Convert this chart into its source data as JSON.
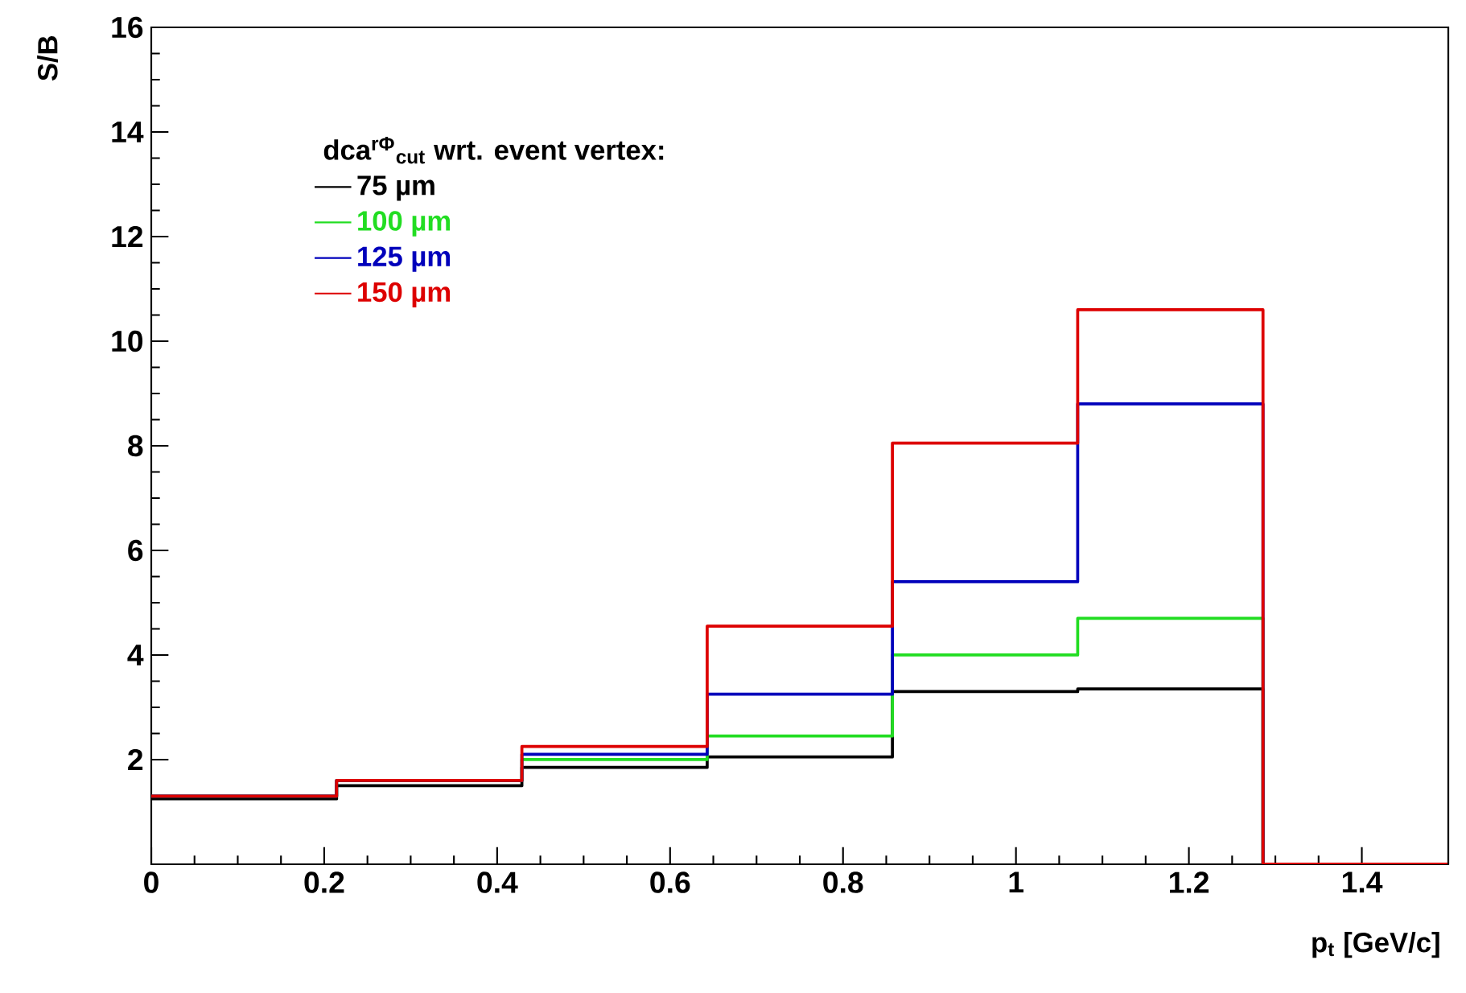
{
  "chart_data": {
    "type": "histogram",
    "xlabel": "p$_{t}$ [GeV/c]",
    "ylabel": "S/B",
    "legend_title": "dca$^{rΦ}$$_{cut}$ wrt. event vertex:",
    "bins": [
      0,
      0.2143,
      0.4286,
      0.6429,
      0.8571,
      1.0714,
      1.2857,
      1.5
    ],
    "series": [
      {
        "name": "75 µm",
        "color": "#000000",
        "values": [
          1.25,
          1.5,
          1.85,
          2.05,
          3.3,
          3.35,
          0
        ]
      },
      {
        "name": "100 µm",
        "color": "#22dd22",
        "values": [
          1.3,
          1.6,
          2.0,
          2.45,
          4.0,
          4.7,
          0
        ]
      },
      {
        "name": "125 µm",
        "color": "#0000bb",
        "values": [
          1.3,
          1.6,
          2.1,
          3.25,
          5.4,
          8.8,
          0
        ]
      },
      {
        "name": "150 µm",
        "color": "#dd0000",
        "values": [
          1.3,
          1.6,
          2.25,
          4.55,
          8.05,
          10.6,
          0
        ]
      }
    ],
    "xlim": [
      0,
      1.5
    ],
    "ylim": [
      0,
      16
    ],
    "xticks": [
      0,
      0.2,
      0.4,
      0.6,
      0.8,
      1,
      1.2,
      1.4
    ],
    "yticks": [
      2,
      4,
      6,
      8,
      10,
      12,
      14,
      16
    ],
    "grid": false,
    "legend": "top left"
  }
}
